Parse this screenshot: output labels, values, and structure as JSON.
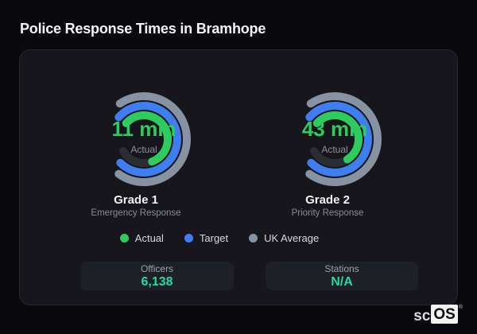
{
  "page": {
    "title": "Police Response Times in Bramhope"
  },
  "colors": {
    "actual_green": "#2ecc5e",
    "target_blue": "#3f7ef0",
    "uk_average_slate": "#8792a3",
    "ring_track": "#2a2d35",
    "stat_value_teal": "#27d89c",
    "card_background": "#16161c",
    "page_background": "#0a0a0e"
  },
  "chart_data": [
    {
      "type": "radial_gauge",
      "title": "Grade 1",
      "subtitle": "Emergency Response",
      "value": 11,
      "unit": "min",
      "value_label": "11 min",
      "center_label": "Actual",
      "rings": [
        {
          "name": "UK Average",
          "color": "#8792a3",
          "radius": 54,
          "start": -34,
          "end": 216,
          "track_end": 216
        },
        {
          "name": "Target",
          "color": "#3f7ef0",
          "radius": 42,
          "start": -49,
          "end": 225,
          "track_end": 225
        },
        {
          "name": "Actual",
          "color": "#2ecc5e",
          "radius": 30,
          "start": -48,
          "end": 160,
          "track_end": 240
        }
      ]
    },
    {
      "type": "radial_gauge",
      "title": "Grade 2",
      "subtitle": "Priority Response",
      "value": 43,
      "unit": "min",
      "value_label": "43 min",
      "center_label": "Actual",
      "rings": [
        {
          "name": "UK Average",
          "color": "#8792a3",
          "radius": 54,
          "start": -34,
          "end": 216,
          "track_end": 216
        },
        {
          "name": "Target",
          "color": "#3f7ef0",
          "radius": 42,
          "start": -49,
          "end": 225,
          "track_end": 225
        },
        {
          "name": "Actual",
          "color": "#2ecc5e",
          "radius": 30,
          "start": -48,
          "end": 148,
          "track_end": 240
        }
      ]
    }
  ],
  "legend": [
    {
      "label": "Actual",
      "color": "#2ecc5e"
    },
    {
      "label": "Target",
      "color": "#3f7ef0"
    },
    {
      "label": "UK Average",
      "color": "#8792a3"
    }
  ],
  "stats": [
    {
      "label": "Officers",
      "value": "6,138"
    },
    {
      "label": "Stations",
      "value": "N/A"
    }
  ],
  "brand": {
    "prefix": "sc",
    "suffix": "OS",
    "registered": "®"
  }
}
